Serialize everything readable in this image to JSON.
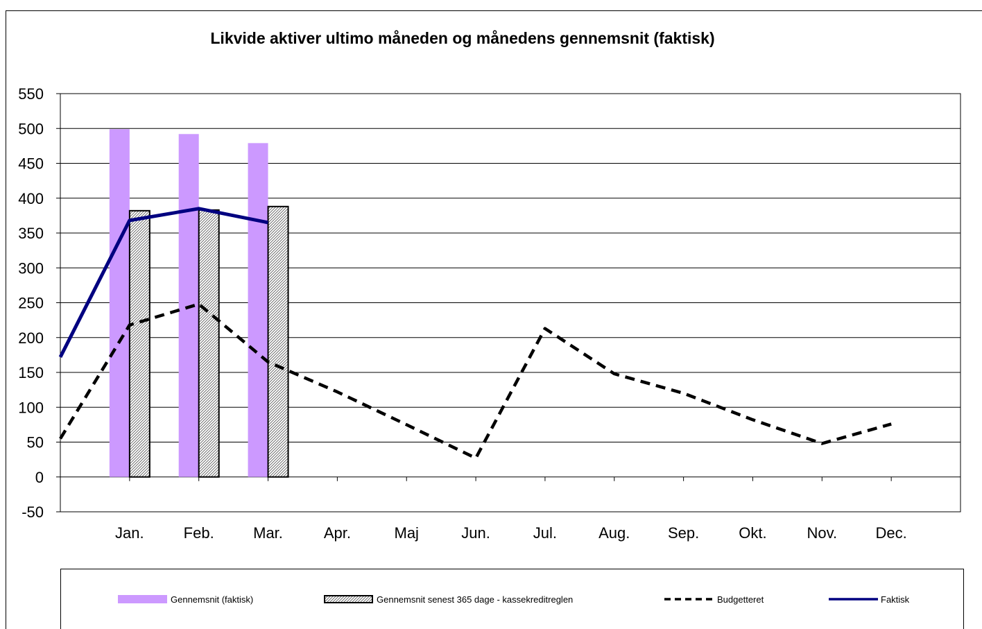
{
  "chart_data": {
    "type": "bar",
    "title": "Likvide aktiver ultimo måneden og månedens gennemsnit (faktisk)",
    "xlabel": "",
    "ylabel": "",
    "categories": [
      "Jan.",
      "Feb.",
      "Mar.",
      "Apr.",
      "Maj",
      "Jun.",
      "Jul.",
      "Aug.",
      "Sep.",
      "Okt.",
      "Nov.",
      "Dec."
    ],
    "ylim": [
      -50,
      550
    ],
    "yticks": [
      -50,
      0,
      50,
      100,
      150,
      200,
      250,
      300,
      350,
      400,
      450,
      500,
      550
    ],
    "grid": true,
    "legend_position": "bottom",
    "series": [
      {
        "name": "Gennemsnit (faktisk)",
        "type": "bar",
        "color": "#cc99ff",
        "values": [
          499,
          492,
          479,
          null,
          null,
          null,
          null,
          null,
          null,
          null,
          null,
          null
        ]
      },
      {
        "name": "Gennemsnit senest 365 dage - kassekreditreglen",
        "type": "bar",
        "pattern": "hatched",
        "values": [
          382,
          383,
          388,
          null,
          null,
          null,
          null,
          null,
          null,
          null,
          null,
          null
        ]
      },
      {
        "name": "Budgetteret",
        "type": "line",
        "style": "dashed",
        "color": "#000000",
        "start_value": 55,
        "values": [
          218,
          248,
          165,
          122,
          75,
          27,
          213,
          148,
          120,
          82,
          48,
          76
        ]
      },
      {
        "name": "Faktisk",
        "type": "line",
        "style": "solid",
        "color": "#000080",
        "start_value": 172,
        "values": [
          368,
          385,
          365,
          null,
          null,
          null,
          null,
          null,
          null,
          null,
          null,
          null
        ]
      }
    ]
  }
}
